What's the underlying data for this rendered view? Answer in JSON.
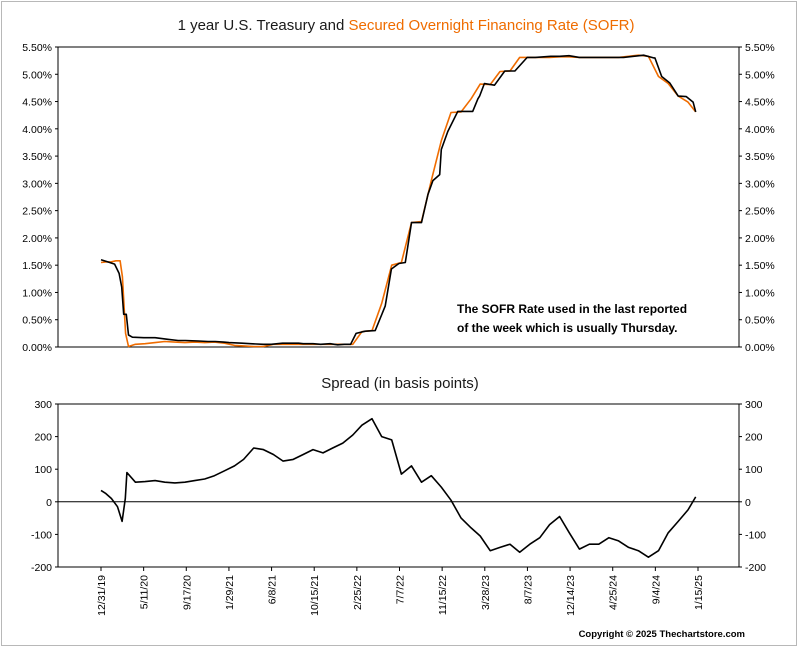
{
  "chart_data": [
    {
      "type": "line",
      "title_parts": [
        {
          "text": "1 year U.S. Treasury and ",
          "color": "#1a1a1a"
        },
        {
          "text": "Secured Overnight Financing Rate (SOFR)",
          "color": "#ef6c00"
        }
      ],
      "ylim": [
        0,
        5.5
      ],
      "y_ticks": [
        "0.00%",
        "0.50%",
        "1.00%",
        "1.50%",
        "2.00%",
        "2.50%",
        "3.00%",
        "3.50%",
        "4.00%",
        "4.50%",
        "5.00%",
        "5.50%"
      ],
      "annotation": [
        "The SOFR Rate used in the last reported",
        "of the week which is usually Thursday."
      ],
      "series": [
        {
          "color": "#000000",
          "x": [
            "2019-12-31",
            "2020-01-21",
            "2020-02-11",
            "2020-02-25",
            "2020-03-04",
            "2020-03-10",
            "2020-03-18",
            "2020-03-25",
            "2020-04-06",
            "2020-05-11",
            "2020-06-15",
            "2020-07-27",
            "2020-08-25",
            "2020-09-17",
            "2020-10-27",
            "2020-11-25",
            "2020-12-17",
            "2021-01-12",
            "2021-01-29",
            "2021-03-10",
            "2021-04-05",
            "2021-05-14",
            "2021-06-08",
            "2021-07-13",
            "2021-08-10",
            "2021-09-01",
            "2021-09-15",
            "2021-10-15",
            "2021-11-08",
            "2021-12-07",
            "2021-12-30",
            "2022-01-20",
            "2022-02-08",
            "2022-02-25",
            "2022-03-25",
            "2022-04-25",
            "2022-05-26",
            "2022-06-14",
            "2022-07-07",
            "2022-07-27",
            "2022-08-15",
            "2022-09-15",
            "2022-10-05",
            "2022-10-20",
            "2022-11-10",
            "2022-11-15",
            "2022-12-05",
            "2023-01-05",
            "2023-01-30",
            "2023-02-20",
            "2023-03-08",
            "2023-03-13",
            "2023-03-28",
            "2023-04-28",
            "2023-05-30",
            "2023-06-30",
            "2023-08-07",
            "2023-09-01",
            "2023-10-19",
            "2023-11-15",
            "2023-12-14",
            "2024-01-15",
            "2024-02-20",
            "2024-03-20",
            "2024-04-25",
            "2024-05-30",
            "2024-06-30",
            "2024-07-31",
            "2024-08-31",
            "2024-09-04",
            "2024-09-25",
            "2024-10-20",
            "2024-11-15",
            "2024-12-10",
            "2024-12-31",
            "2025-01-08"
          ],
          "values": [
            1.6,
            1.56,
            1.52,
            1.35,
            1.1,
            0.6,
            0.6,
            0.22,
            0.18,
            0.17,
            0.17,
            0.14,
            0.12,
            0.12,
            0.11,
            0.1,
            0.1,
            0.09,
            0.08,
            0.07,
            0.06,
            0.05,
            0.05,
            0.07,
            0.07,
            0.07,
            0.06,
            0.06,
            0.05,
            0.06,
            0.04,
            0.05,
            0.05,
            0.25,
            0.29,
            0.3,
            0.75,
            1.43,
            1.53,
            1.55,
            2.28,
            2.28,
            2.8,
            3.05,
            3.16,
            3.62,
            3.95,
            4.32,
            4.32,
            4.32,
            4.55,
            4.6,
            4.83,
            4.8,
            5.06,
            5.06,
            5.31,
            5.31,
            5.33,
            5.33,
            5.34,
            5.31,
            5.31,
            5.31,
            5.31,
            5.31,
            5.33,
            5.35,
            5.3,
            5.3,
            4.96,
            4.84,
            4.6,
            4.59,
            4.49,
            4.31
          ],
          "name": ""
        },
        {
          "color": "#ef6c00",
          "x": [
            "2019-12-31",
            "2020-01-15",
            "2020-01-31",
            "2020-02-15",
            "2020-02-28",
            "2020-03-06",
            "2020-03-16",
            "2020-03-25",
            "2020-04-15",
            "2020-05-15",
            "2020-06-15",
            "2020-07-15",
            "2020-08-15",
            "2020-09-15",
            "2020-10-15",
            "2020-11-15",
            "2020-12-15",
            "2021-01-15",
            "2021-02-15",
            "2021-03-15",
            "2021-04-15",
            "2021-05-15",
            "2021-06-15",
            "2021-07-15",
            "2021-08-15",
            "2021-09-15",
            "2021-10-15",
            "2021-11-15",
            "2021-12-15",
            "2022-01-15",
            "2022-02-15",
            "2022-03-15",
            "2022-04-15",
            "2022-05-15",
            "2022-06-15",
            "2022-07-15",
            "2022-08-15",
            "2022-09-15",
            "2022-10-15",
            "2022-11-15",
            "2022-12-15",
            "2023-01-15",
            "2023-02-15",
            "2023-03-15",
            "2023-04-15",
            "2023-05-15",
            "2023-06-15",
            "2023-07-15",
            "2023-08-15",
            "2023-09-15",
            "2023-10-15",
            "2023-11-15",
            "2023-12-15",
            "2024-01-15",
            "2024-02-15",
            "2024-03-15",
            "2024-04-15",
            "2024-05-15",
            "2024-06-15",
            "2024-07-15",
            "2024-08-15",
            "2024-09-15",
            "2024-10-15",
            "2024-11-15",
            "2024-12-15",
            "2025-01-08"
          ],
          "values": [
            1.55,
            1.56,
            1.56,
            1.58,
            1.58,
            1.29,
            0.25,
            0.01,
            0.05,
            0.06,
            0.08,
            0.1,
            0.09,
            0.08,
            0.09,
            0.08,
            0.09,
            0.07,
            0.03,
            0.02,
            0.01,
            0.01,
            0.05,
            0.05,
            0.05,
            0.05,
            0.05,
            0.05,
            0.05,
            0.05,
            0.05,
            0.28,
            0.3,
            0.8,
            1.5,
            1.55,
            2.28,
            2.3,
            3.05,
            3.78,
            4.3,
            4.31,
            4.55,
            4.82,
            4.81,
            5.05,
            5.06,
            5.31,
            5.31,
            5.31,
            5.31,
            5.32,
            5.32,
            5.31,
            5.31,
            5.31,
            5.31,
            5.31,
            5.33,
            5.35,
            5.33,
            4.96,
            4.83,
            4.6,
            4.49,
            4.31
          ],
          "name": ""
        }
      ]
    },
    {
      "type": "line",
      "title": "Spread (in basis points)",
      "ylim": [
        -200,
        300
      ],
      "y_ticks": [
        "-200",
        "-100",
        "0",
        "100",
        "200",
        "300"
      ],
      "x_ticks": [
        "12/31/19",
        "5/11/20",
        "9/17/20",
        "1/29/21",
        "6/8/21",
        "10/15/21",
        "2/25/22",
        "7/7/22",
        "11/15/22",
        "3/28/23",
        "8/7/23",
        "12/14/23",
        "4/25/24",
        "9/4/24",
        "1/15/25"
      ],
      "series": [
        {
          "color": "#000000",
          "x": [
            "2019-12-31",
            "2020-01-15",
            "2020-02-01",
            "2020-02-20",
            "2020-03-05",
            "2020-03-15",
            "2020-03-20",
            "2020-04-15",
            "2020-05-15",
            "2020-06-15",
            "2020-07-15",
            "2020-08-15",
            "2020-09-15",
            "2020-10-15",
            "2020-11-15",
            "2020-12-15",
            "2021-01-15",
            "2021-02-15",
            "2021-03-15",
            "2021-04-15",
            "2021-05-15",
            "2021-06-15",
            "2021-07-15",
            "2021-08-15",
            "2021-09-15",
            "2021-10-15",
            "2021-11-15",
            "2021-12-15",
            "2022-01-15",
            "2022-02-15",
            "2022-03-15",
            "2022-04-15",
            "2022-05-15",
            "2022-06-15",
            "2022-07-15",
            "2022-08-15",
            "2022-09-15",
            "2022-10-15",
            "2022-11-15",
            "2022-12-15",
            "2023-01-15",
            "2023-02-15",
            "2023-03-15",
            "2023-04-15",
            "2023-05-15",
            "2023-06-15",
            "2023-07-15",
            "2023-08-15",
            "2023-09-15",
            "2023-10-15",
            "2023-11-15",
            "2023-12-15",
            "2024-01-15",
            "2024-02-15",
            "2024-03-15",
            "2024-04-15",
            "2024-05-15",
            "2024-06-15",
            "2024-07-15",
            "2024-08-15",
            "2024-09-15",
            "2024-10-15",
            "2024-11-15",
            "2024-12-15",
            "2025-01-08"
          ],
          "values": [
            35,
            25,
            10,
            -15,
            -60,
            10,
            90,
            60,
            62,
            65,
            60,
            58,
            60,
            65,
            70,
            80,
            95,
            110,
            130,
            165,
            160,
            145,
            125,
            130,
            145,
            160,
            150,
            165,
            180,
            205,
            235,
            255,
            200,
            190,
            85,
            110,
            60,
            80,
            45,
            5,
            -50,
            -80,
            -105,
            -150,
            -140,
            -130,
            -155,
            -130,
            -110,
            -70,
            -45,
            -95,
            -145,
            -130,
            -130,
            -110,
            -120,
            -140,
            -150,
            -170,
            -150,
            -95,
            -60,
            -25,
            15
          ],
          "name": ""
        }
      ]
    }
  ],
  "copyright": "Copyright © 2025 Thechartstore.com",
  "colors": {
    "treasury": "#000000",
    "sofr": "#ef6c00",
    "frame": "#b8b8b8"
  }
}
